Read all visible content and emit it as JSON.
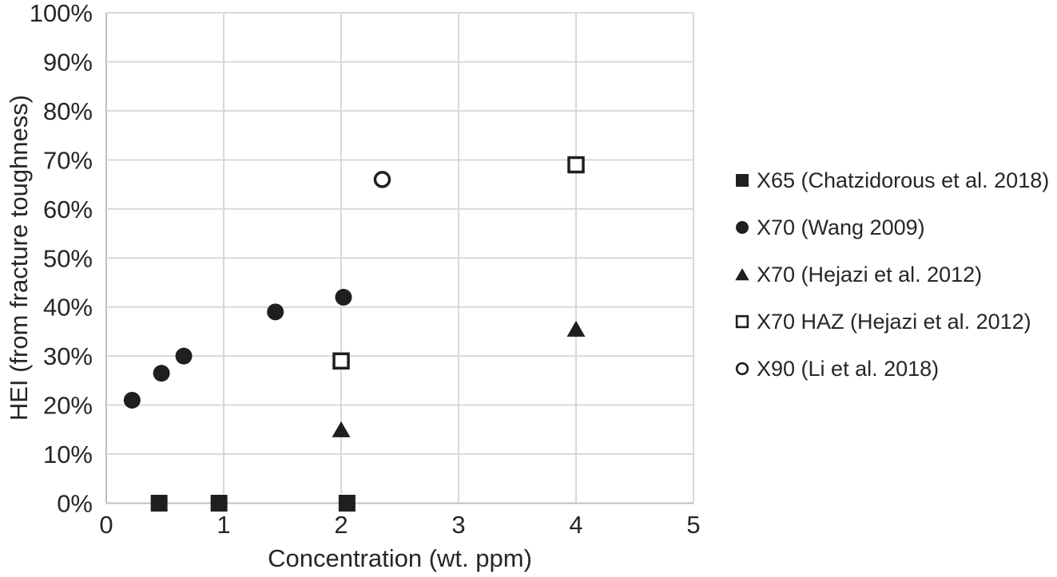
{
  "chart_data": {
    "type": "scatter",
    "title": "",
    "xlabel": "Concentration (wt. ppm)",
    "ylabel": "HEI (from fracture toughness)",
    "xlim": [
      0,
      5
    ],
    "ylim": [
      0,
      100
    ],
    "grid": true,
    "legend_position": "right",
    "x_ticks": [
      {
        "value": 0,
        "label": "0"
      },
      {
        "value": 1,
        "label": "1"
      },
      {
        "value": 2,
        "label": "2"
      },
      {
        "value": 3,
        "label": "3"
      },
      {
        "value": 4,
        "label": "4"
      },
      {
        "value": 5,
        "label": "5"
      }
    ],
    "y_ticks": [
      {
        "value": 0,
        "label": "0%"
      },
      {
        "value": 10,
        "label": "10%"
      },
      {
        "value": 20,
        "label": "20%"
      },
      {
        "value": 30,
        "label": "30%"
      },
      {
        "value": 40,
        "label": "40%"
      },
      {
        "value": 50,
        "label": "50%"
      },
      {
        "value": 60,
        "label": "60%"
      },
      {
        "value": 70,
        "label": "70%"
      },
      {
        "value": 80,
        "label": "80%"
      },
      {
        "value": 90,
        "label": "90%"
      },
      {
        "value": 100,
        "label": "100%"
      }
    ],
    "series": [
      {
        "name": "X65 (Chatzidorous et al. 2018)",
        "marker": "filled-square",
        "points": [
          [
            0.45,
            0
          ],
          [
            0.96,
            0
          ],
          [
            2.05,
            0
          ]
        ]
      },
      {
        "name": "X70 (Wang 2009)",
        "marker": "filled-circle",
        "points": [
          [
            0.22,
            21
          ],
          [
            0.47,
            26.5
          ],
          [
            0.66,
            30
          ],
          [
            1.44,
            39
          ],
          [
            2.02,
            42
          ]
        ]
      },
      {
        "name": "X70 (Hejazi et al. 2012)",
        "marker": "filled-triangle",
        "points": [
          [
            2.0,
            15
          ],
          [
            4.0,
            35.5
          ]
        ]
      },
      {
        "name": "X70 HAZ (Hejazi et al. 2012)",
        "marker": "open-square",
        "points": [
          [
            2.0,
            29
          ],
          [
            4.0,
            69
          ]
        ]
      },
      {
        "name": "X90 (Li et al. 2018)",
        "marker": "open-circle",
        "points": [
          [
            2.35,
            66
          ]
        ]
      }
    ],
    "colors": {
      "marker": "#1f1f1f",
      "text": "#262626",
      "gridline": "#d9d9d9",
      "axis_line": "#bfbfbf",
      "background": "#ffffff"
    }
  }
}
